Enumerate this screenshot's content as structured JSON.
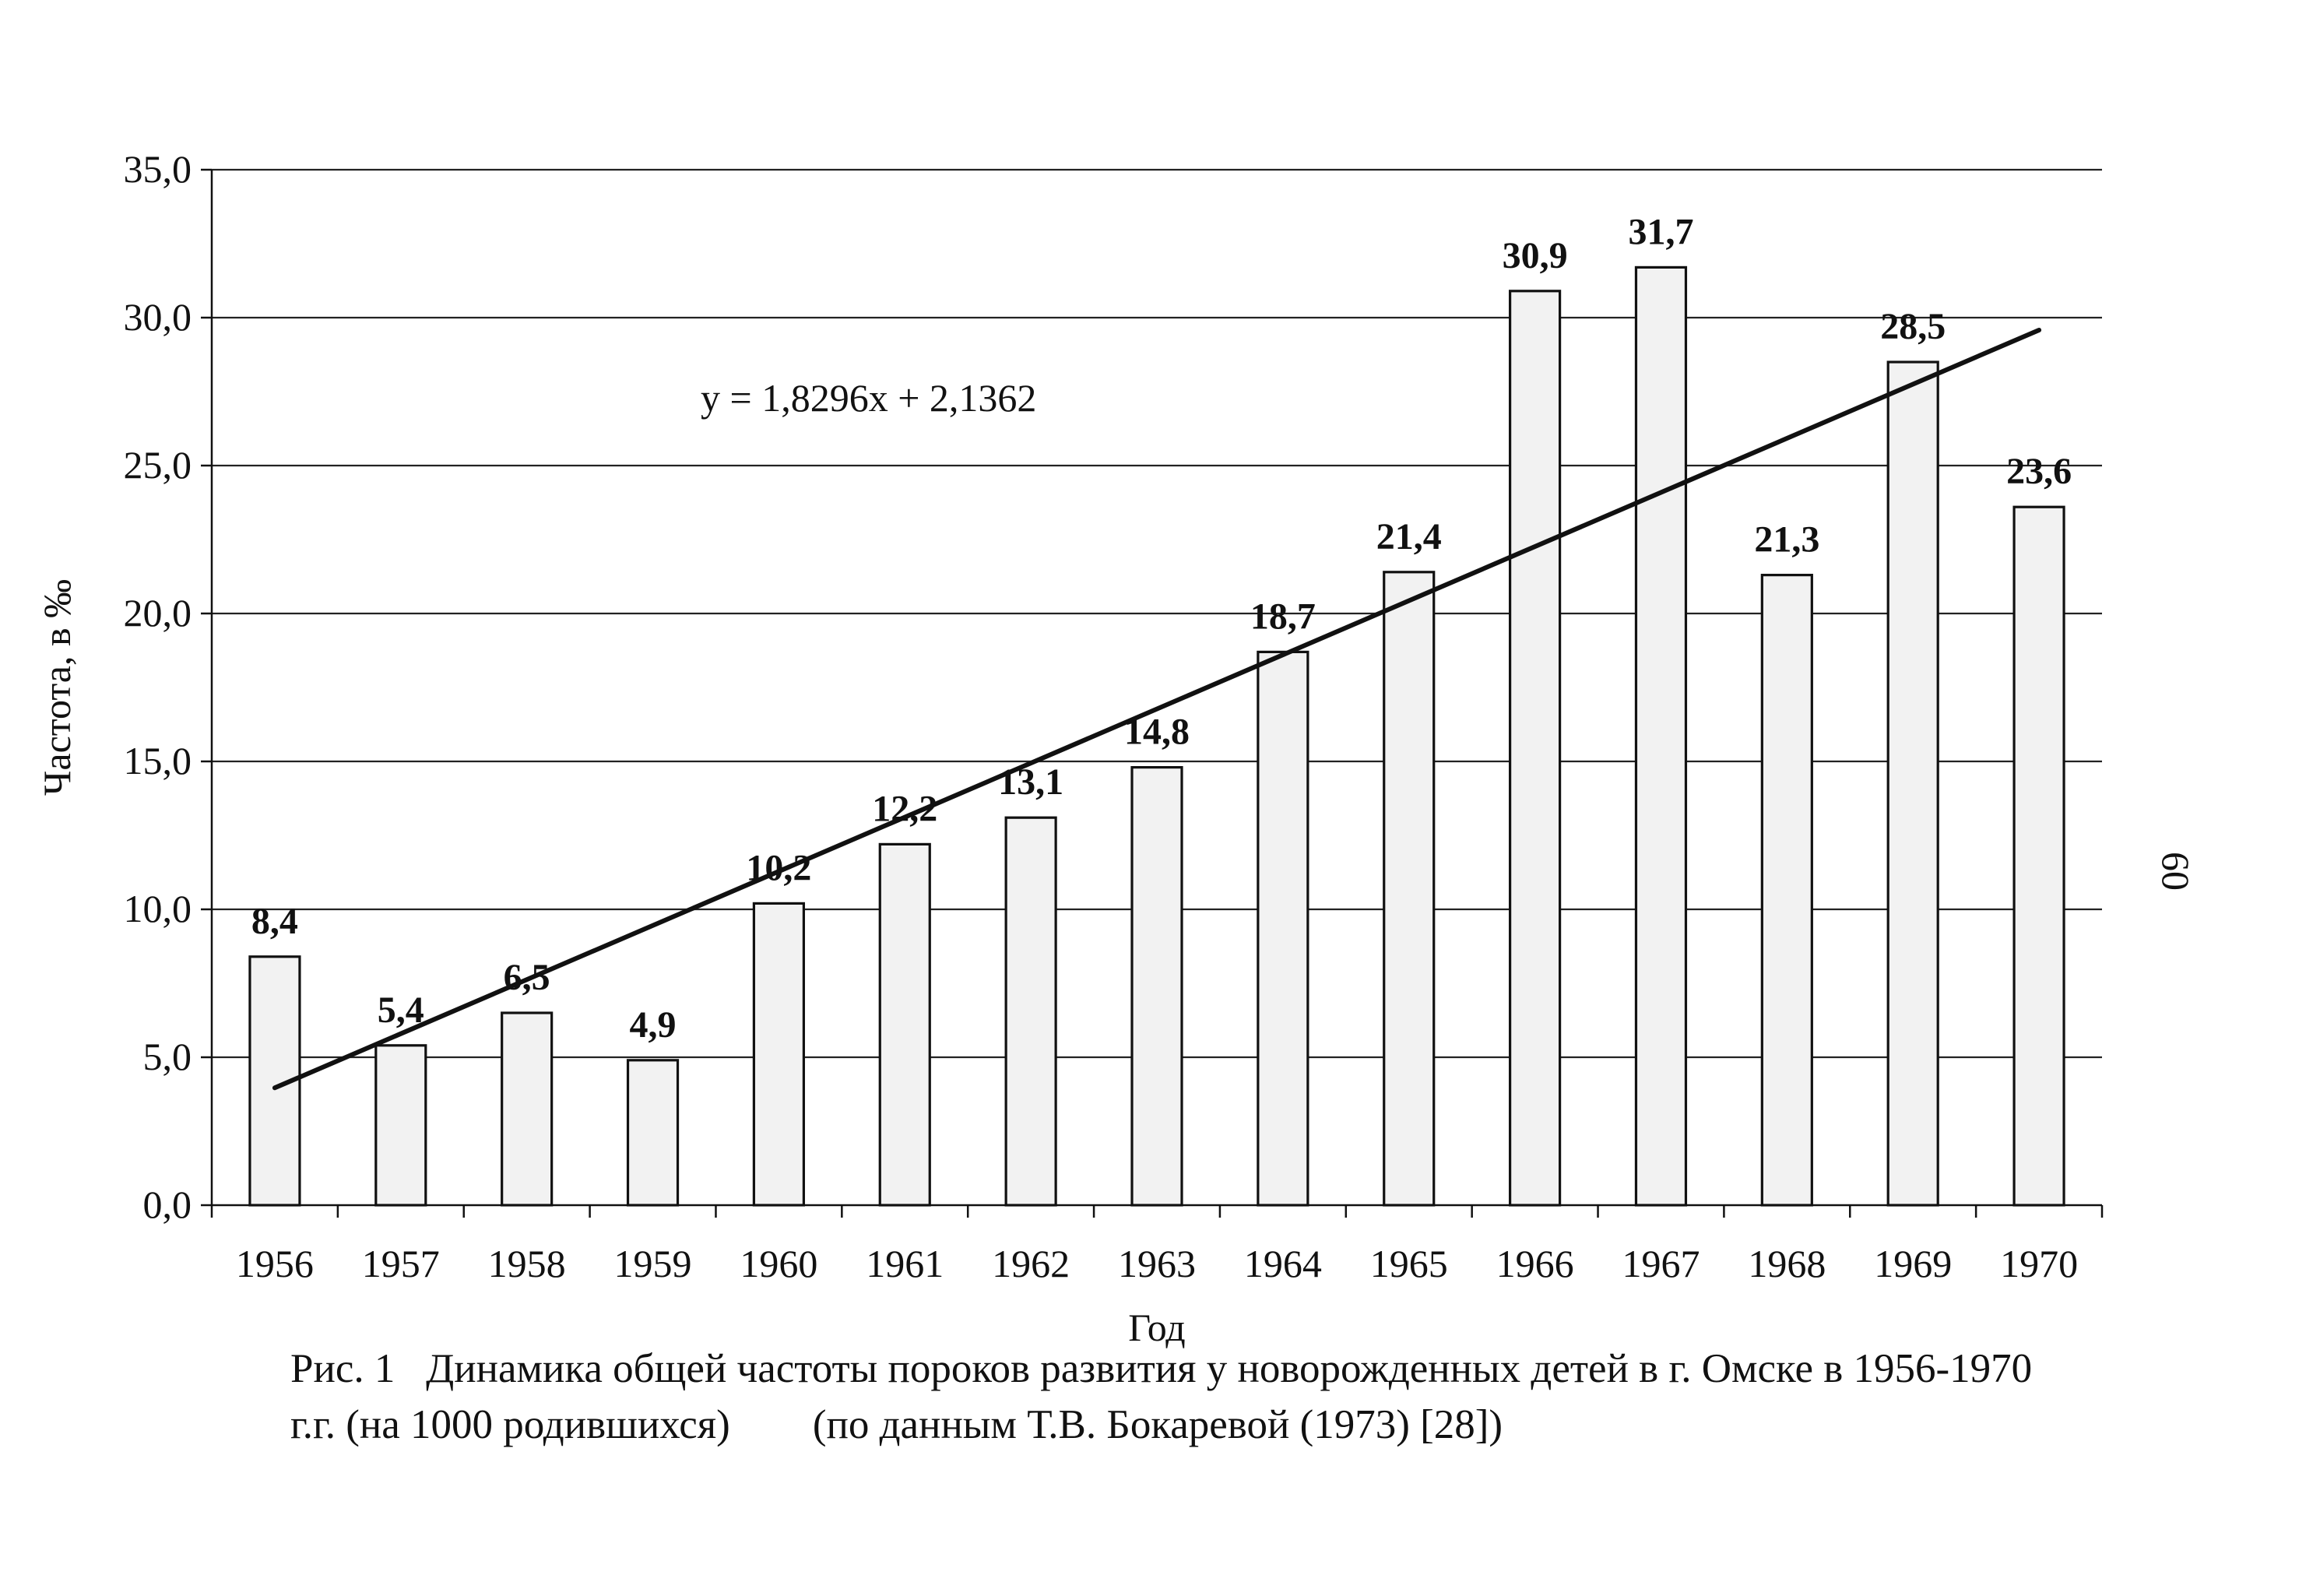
{
  "page_number": "60",
  "caption": {
    "line1": "Рис. 1   Динамика общей частоты пороков развития у новорожденных детей в г. Омске в 1956-1970",
    "line2": "г.г. (на 1000 родившихся)        (по данным Т.В. Бокаревой (1973) [28])"
  },
  "colors": {
    "ink": "#111111",
    "bar_fill": "#f2f2f2",
    "grid": "#222222"
  },
  "chart_data": {
    "type": "bar",
    "xlabel": "Год",
    "ylabel": "Частота, в ‰",
    "ylim": [
      0,
      35
    ],
    "yticks": [
      "0,0",
      "5,0",
      "10,0",
      "15,0",
      "20,0",
      "25,0",
      "30,0",
      "35,0"
    ],
    "categories": [
      "1956",
      "1957",
      "1958",
      "1959",
      "1960",
      "1961",
      "1962",
      "1963",
      "1964",
      "1965",
      "1966",
      "1967",
      "1968",
      "1969",
      "1970"
    ],
    "values": [
      8.4,
      5.4,
      6.5,
      4.9,
      10.2,
      12.2,
      13.1,
      14.8,
      18.7,
      21.4,
      30.9,
      31.7,
      21.3,
      28.5,
      23.6
    ],
    "value_labels": [
      "8,4",
      "5,4",
      "6,5",
      "4,9",
      "10,2",
      "12,2",
      "13,1",
      "14,8",
      "18,7",
      "21,4",
      "30,9",
      "31,7",
      "21,3",
      "28,5",
      "23,6"
    ],
    "grid": true,
    "trendline": {
      "equation": "y = 1,8296x + 2,1362",
      "slope": 1.8296,
      "intercept": 2.1362
    }
  }
}
